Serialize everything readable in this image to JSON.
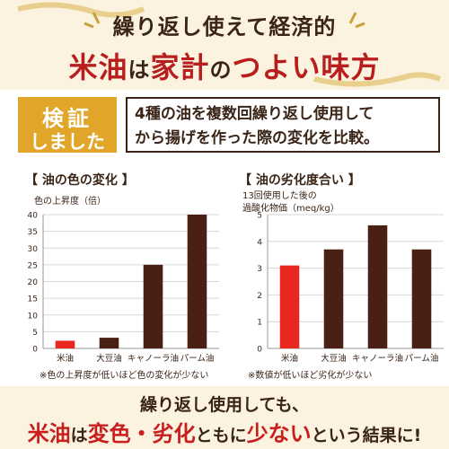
{
  "header": {
    "subtitle": "繰り返し使えて経済的",
    "title_part1": "米油",
    "title_part2": "は",
    "title_part3": "家計",
    "title_part4": "の",
    "title_part5": "つよい味方"
  },
  "verify": {
    "badge_line1": "検証",
    "badge_line2": "しました",
    "text_line1": "4種の油を複数回繰り返し使用して",
    "text_line2": "から揚げを作った際の変化を比較。"
  },
  "colors": {
    "highlight": "#e8281e",
    "bar": "#4a2014",
    "accent": "#e1a52a",
    "title_red": "#b81e1e"
  },
  "chart_data": [
    {
      "type": "bar",
      "title": "【 油の色の変化 】",
      "ylabel": "色の上昇度（倍）",
      "categories": [
        "米油",
        "大豆油",
        "キャノーラ油",
        "パーム油"
      ],
      "values": [
        2.3,
        3.2,
        25,
        40
      ],
      "ylim": [
        0,
        40
      ],
      "yticks": [
        "0",
        "5",
        "10",
        "15",
        "20",
        "25",
        "30",
        "35",
        "40"
      ],
      "grid": true,
      "highlight_index": 0,
      "note": "※色の上昇度が低いほど色の変化が少ない"
    },
    {
      "type": "bar",
      "title": "【 油の劣化度合い 】",
      "ylabel_line1": "13回使用した後の",
      "ylabel_line2": "過酸化物価（meq/kg）",
      "categories": [
        "米油",
        "大豆油",
        "キャノーラ油",
        "パーム油"
      ],
      "values": [
        3.1,
        3.7,
        4.6,
        3.7
      ],
      "ylim": [
        0,
        5
      ],
      "yticks": [
        "0",
        "1",
        "2",
        "3",
        "4",
        "5"
      ],
      "grid": true,
      "highlight_index": 0,
      "note": "※数値が低いほど劣化が少ない"
    }
  ],
  "footer": {
    "line1": "繰り返し使用しても、",
    "line2_a": "米油",
    "line2_b": "は",
    "line2_c": "変色・劣化",
    "line2_d": "ともに",
    "line2_e": "少ない",
    "line2_f": "という結果に!"
  }
}
